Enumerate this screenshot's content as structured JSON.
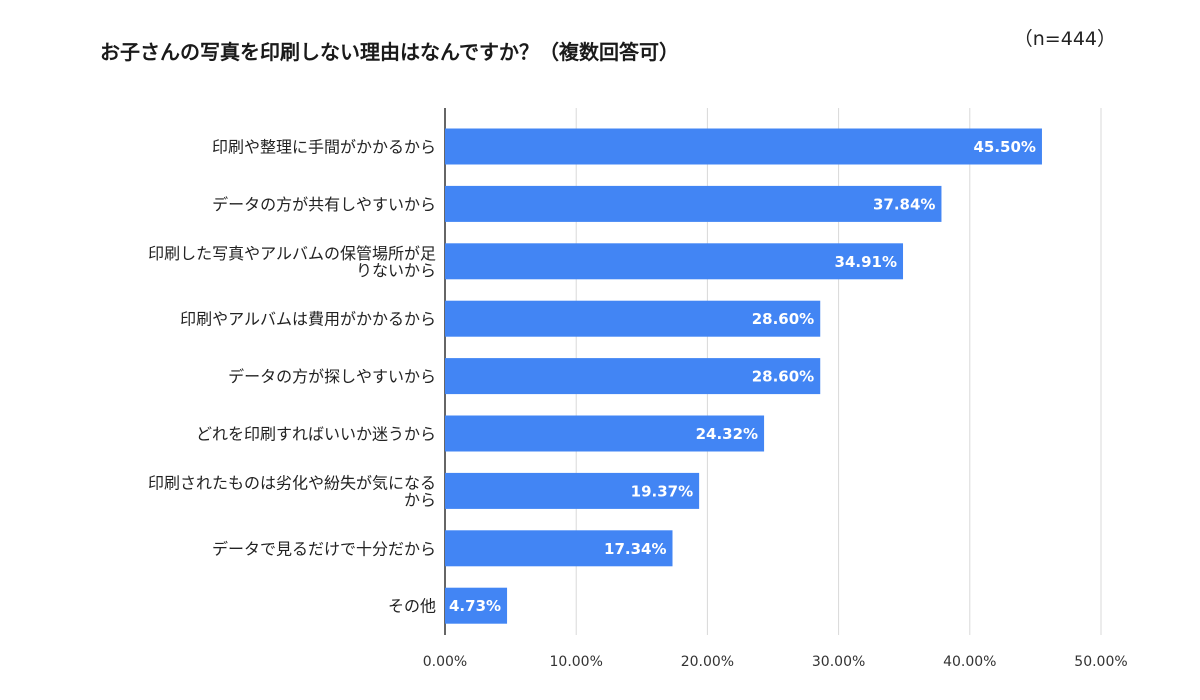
{
  "header": {
    "title": "お子さんの写真を印刷しない理由はなんですか？（複数回答可）",
    "sample_size": "（n=444）"
  },
  "colors": {
    "bar": "#4285f4",
    "gridline": "#d9d9d9",
    "axis": "#333333"
  },
  "chart_data": {
    "type": "bar",
    "orientation": "horizontal",
    "title": "お子さんの写真を印刷しない理由はなんですか？（複数回答可）",
    "categories": [
      "印刷や整理に手間がかかるから",
      "データの方が共有しやすいから",
      "印刷した写真やアルバムの保管場所が足りないから",
      "印刷やアルバムは費用がかかるから",
      "データの方が探しやすいから",
      "どれを印刷すればいいか迷うから",
      "印刷されたものは劣化や紛失が気になるから",
      "データで見るだけで十分だから",
      "その他"
    ],
    "category_lines": [
      [
        "印刷や整理に手間がかかるから"
      ],
      [
        "データの方が共有しやすいから"
      ],
      [
        "印刷した写真やアルバムの保管場所が足",
        "りないから"
      ],
      [
        "印刷やアルバムは費用がかかるから"
      ],
      [
        "データの方が探しやすいから"
      ],
      [
        "どれを印刷すればいいか迷うから"
      ],
      [
        "印刷されたものは劣化や紛失が気になる",
        "から"
      ],
      [
        "データで見るだけで十分だから"
      ],
      [
        "その他"
      ]
    ],
    "values": [
      45.5,
      37.84,
      34.91,
      28.6,
      28.6,
      24.32,
      19.37,
      17.34,
      4.73
    ],
    "value_labels": [
      "45.50%",
      "37.84%",
      "34.91%",
      "28.60%",
      "28.60%",
      "24.32%",
      "19.37%",
      "17.34%",
      "4.73%"
    ],
    "xlim": [
      0,
      50
    ],
    "xticks": [
      0,
      10,
      20,
      30,
      40,
      50
    ],
    "xtick_labels": [
      "0.00%",
      "10.00%",
      "20.00%",
      "30.00%",
      "40.00%",
      "50.00%"
    ],
    "grid": true,
    "legend": "none",
    "xlabel": "",
    "ylabel": ""
  }
}
